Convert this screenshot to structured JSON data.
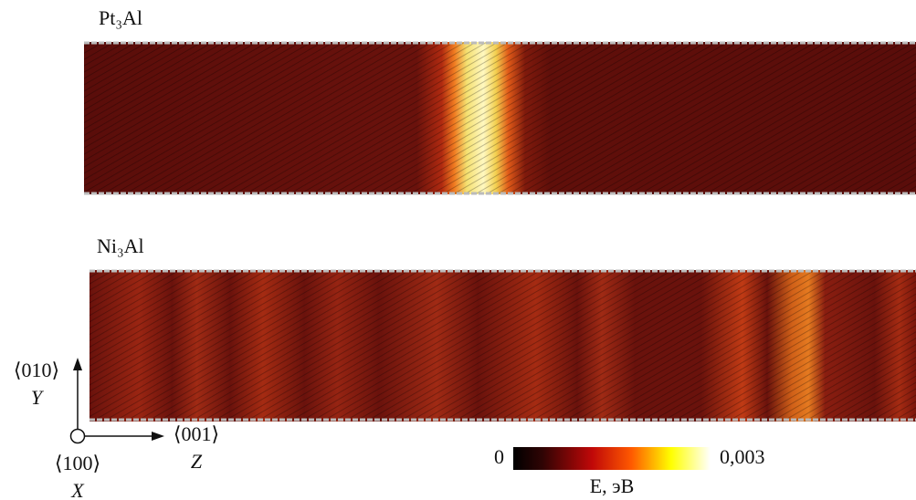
{
  "panels": [
    {
      "label": "Pt₃Al"
    },
    {
      "label": "Ni₃Al"
    }
  ],
  "axes": {
    "y": {
      "direction": "⟨010⟩",
      "name": "Y"
    },
    "z": {
      "direction": "⟨001⟩",
      "name": "Z"
    },
    "x": {
      "direction": "⟨100⟩",
      "name": "X"
    }
  },
  "colorbar": {
    "min_label": "0",
    "max_label": "0,003",
    "label": "E, эВ"
  }
}
